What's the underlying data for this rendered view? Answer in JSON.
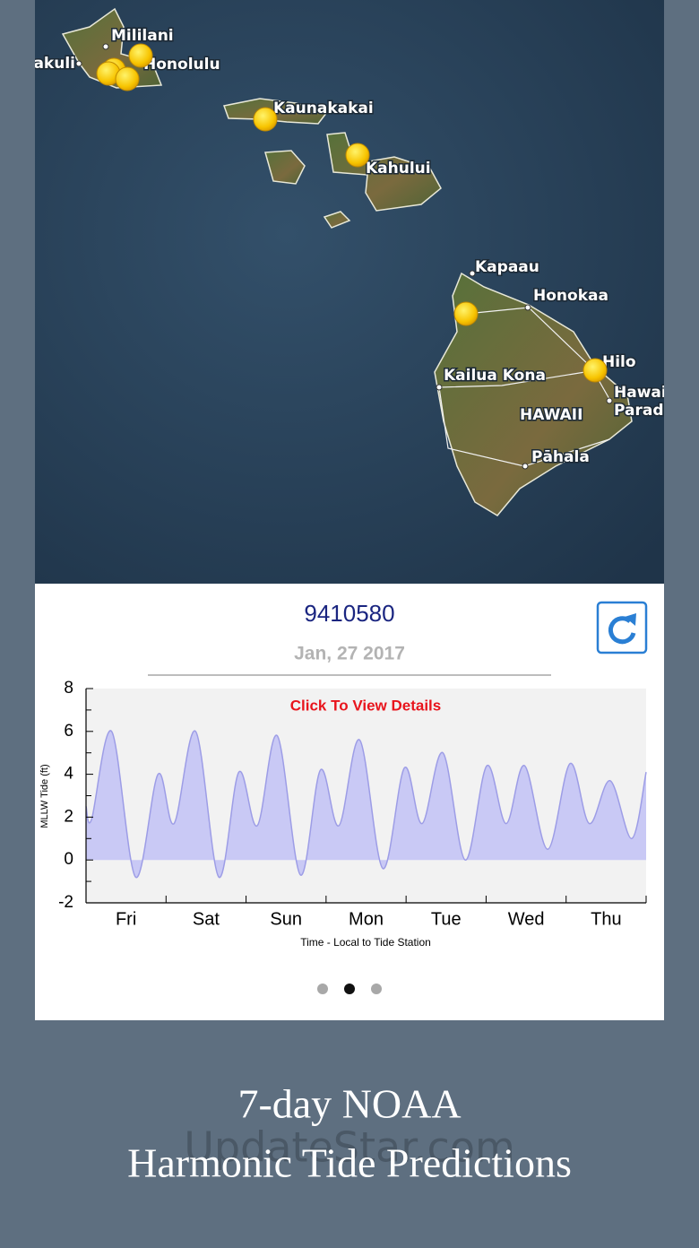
{
  "map": {
    "labels": [
      "Mililani",
      "akuli",
      "Honolulu",
      "Kaunakakai",
      "Kahului",
      "Kapaau",
      "Honokaa",
      "Kailua Kona",
      "Hilo",
      "Hawai",
      "Parad",
      "HAWAII",
      "Pāhala"
    ]
  },
  "station": {
    "id": "9410580",
    "date": "Jan, 27 2017"
  },
  "chart_data": {
    "type": "area",
    "annotation": "Click To View Details",
    "y_label": "MLLW Tide (ft)",
    "x_label": "Time - Local to Tide Station",
    "categories": [
      "Fri",
      "Sat",
      "Sun",
      "Mon",
      "Tue",
      "Wed",
      "Thu"
    ],
    "xlim": [
      0,
      7
    ],
    "xticks": [
      1,
      2,
      3,
      4,
      5,
      6,
      7
    ],
    "ylim": [
      -2,
      8
    ],
    "yticks": [
      -2,
      0,
      2,
      4,
      6,
      8
    ],
    "yminorticks": [
      -1,
      1,
      3,
      5,
      7
    ],
    "color": "#c9c9f5",
    "line_color": "#9d9de6",
    "x": [
      0,
      0.07,
      0.32,
      0.62,
      0.9,
      1.1,
      1.37,
      1.66,
      1.91,
      2.14,
      2.39,
      2.68,
      2.93,
      3.16,
      3.42,
      3.71,
      3.98,
      4.2,
      4.46,
      4.74,
      5.01,
      5.25,
      5.48,
      5.77,
      6.05,
      6.29,
      6.55,
      6.82,
      7
    ],
    "values": [
      2.5,
      1.9,
      6.0,
      -0.8,
      4.0,
      1.7,
      6.0,
      -0.8,
      4.1,
      1.6,
      5.8,
      -0.7,
      4.2,
      1.6,
      5.6,
      -0.4,
      4.3,
      1.7,
      5.0,
      0.0,
      4.4,
      1.7,
      4.4,
      0.5,
      4.5,
      1.7,
      3.7,
      1.0,
      4.1
    ]
  },
  "caption": [
    "7-day NOAA",
    "Harmonic Tide Predictions"
  ],
  "watermark": "UpdateStar.com"
}
